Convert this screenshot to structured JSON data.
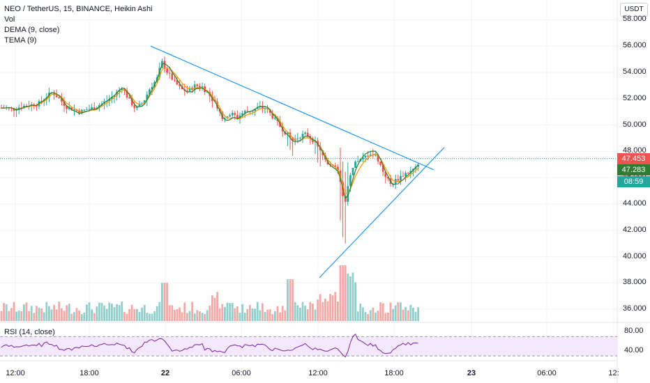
{
  "legend": {
    "title": "NEO / TetherUS, 15, BINANCE, Heikin Ashi",
    "vol": "Vol",
    "dema": "DEMA (9, close)",
    "tema": "TEMA (9)",
    "rsi": "RSI (14, close)"
  },
  "currency_button": "USDT",
  "price_tags": {
    "last": "47.453",
    "ma": "47.283",
    "countdown": "08:59"
  },
  "colors": {
    "up": "#26a69a",
    "down": "#ef5350",
    "vol_up": "#93cfca",
    "vol_down": "#f4a9a7",
    "dema": "#ff9800",
    "tema": "#2e7d32",
    "trendline": "#2196f3",
    "rsi_line": "#7b1fa2",
    "rsi_band": "#f3e8fc"
  },
  "chart_data": {
    "type": "candlestick",
    "symbol": "NEO / TetherUS",
    "interval": "15",
    "exchange": "BINANCE",
    "style": "Heikin Ashi",
    "y_axis": {
      "ticks": [
        "58.000",
        "56.000",
        "54.000",
        "52.000",
        "50.000",
        "48.000",
        "46.000",
        "44.000",
        "42.000",
        "40.000",
        "38.000",
        "36.000"
      ],
      "range": [
        35.0,
        59.5
      ]
    },
    "x_axis": {
      "ticks": [
        {
          "label": "12:00",
          "bold": false
        },
        {
          "label": "18:00",
          "bold": false
        },
        {
          "label": "22",
          "bold": true
        },
        {
          "label": "06:00",
          "bold": false
        },
        {
          "label": "12:00",
          "bold": false
        },
        {
          "label": "18:00",
          "bold": false
        },
        {
          "label": "23",
          "bold": true
        },
        {
          "label": "06:00",
          "bold": false
        },
        {
          "label": "12:"
        }
      ]
    },
    "price_path": [
      [
        0,
        51.3
      ],
      [
        10,
        51.3
      ],
      [
        20,
        51.2
      ],
      [
        30,
        51.4
      ],
      [
        40,
        51.5
      ],
      [
        55,
        51.6
      ],
      [
        65,
        52.1
      ],
      [
        75,
        52.5
      ],
      [
        85,
        52.0
      ],
      [
        95,
        51.4
      ],
      [
        105,
        51.2
      ],
      [
        115,
        51.0
      ],
      [
        125,
        51.2
      ],
      [
        135,
        51.3
      ],
      [
        145,
        51.6
      ],
      [
        155,
        51.9
      ],
      [
        165,
        52.3
      ],
      [
        175,
        52.9
      ],
      [
        185,
        51.9
      ],
      [
        195,
        51.2
      ],
      [
        205,
        51.7
      ],
      [
        215,
        52.8
      ],
      [
        225,
        53.5
      ],
      [
        232,
        54.8
      ],
      [
        240,
        54.0
      ],
      [
        250,
        53.3
      ],
      [
        260,
        52.7
      ],
      [
        270,
        52.6
      ],
      [
        280,
        53.0
      ],
      [
        290,
        52.9
      ],
      [
        300,
        52.3
      ],
      [
        310,
        51.6
      ],
      [
        320,
        50.4
      ],
      [
        330,
        50.9
      ],
      [
        340,
        50.6
      ],
      [
        350,
        51.0
      ],
      [
        360,
        51.1
      ],
      [
        370,
        51.3
      ],
      [
        380,
        51.3
      ],
      [
        390,
        50.7
      ],
      [
        400,
        50.0
      ],
      [
        410,
        49.4
      ],
      [
        420,
        48.8
      ],
      [
        430,
        49.2
      ],
      [
        440,
        49.3
      ],
      [
        450,
        48.8
      ],
      [
        460,
        47.9
      ],
      [
        470,
        47.1
      ],
      [
        480,
        47.0
      ],
      [
        485,
        46.3
      ],
      [
        490,
        45.0
      ],
      [
        495,
        44.2
      ],
      [
        500,
        45.8
      ],
      [
        510,
        47.1
      ],
      [
        520,
        47.4
      ],
      [
        530,
        47.9
      ],
      [
        540,
        47.6
      ],
      [
        550,
        46.4
      ],
      [
        560,
        45.5
      ],
      [
        570,
        45.9
      ],
      [
        580,
        46.3
      ],
      [
        590,
        46.5
      ],
      [
        600,
        46.9
      ]
    ],
    "volume": {
      "scale_note": "relative",
      "pattern": "low, spike near 22 start, large spikes around 12:00-15:00 on day 22"
    },
    "rsi": {
      "period": 14,
      "ticks": [
        "80.00",
        "40.00"
      ],
      "range": [
        20,
        95
      ],
      "band": [
        30,
        70
      ]
    },
    "trendlines": [
      {
        "from_time": "22 00:00",
        "from_price": 56.0,
        "to_time": "22 ~21:00",
        "to_price": 46.7
      },
      {
        "from_time": "22 ~12:00",
        "from_price": 38.5,
        "to_time": "22 ~21:15",
        "to_price": 48.3
      }
    ],
    "last_price": 47.453
  }
}
